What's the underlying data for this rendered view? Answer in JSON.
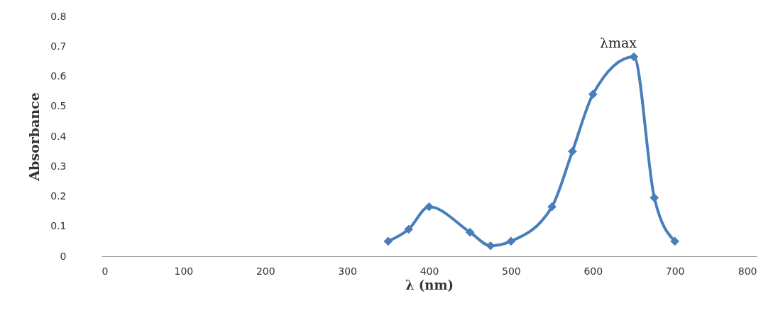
{
  "chart_data": {
    "type": "line",
    "xlabel": "λ  (nm)",
    "ylabel": "Absorbance",
    "x": [
      350,
      375,
      400,
      450,
      475,
      500,
      550,
      575,
      600,
      650,
      675,
      700
    ],
    "series": [
      {
        "color": "#4a7ebb",
        "values": [
          0.05,
          0.09,
          0.165,
          0.08,
          0.035,
          0.05,
          0.165,
          0.35,
          0.54,
          0.665,
          0.195,
          0.05
        ]
      }
    ],
    "xlim": [
      0,
      800
    ],
    "xticks": [
      0,
      100,
      200,
      300,
      400,
      500,
      600,
      700,
      800
    ],
    "ylim": [
      0,
      0.8
    ],
    "yticks": [
      0,
      0.1,
      0.2,
      0.3,
      0.4,
      0.5,
      0.6,
      0.7,
      0.8
    ],
    "marker": "diamond",
    "grid": false,
    "annotations": [
      "λmax"
    ]
  }
}
